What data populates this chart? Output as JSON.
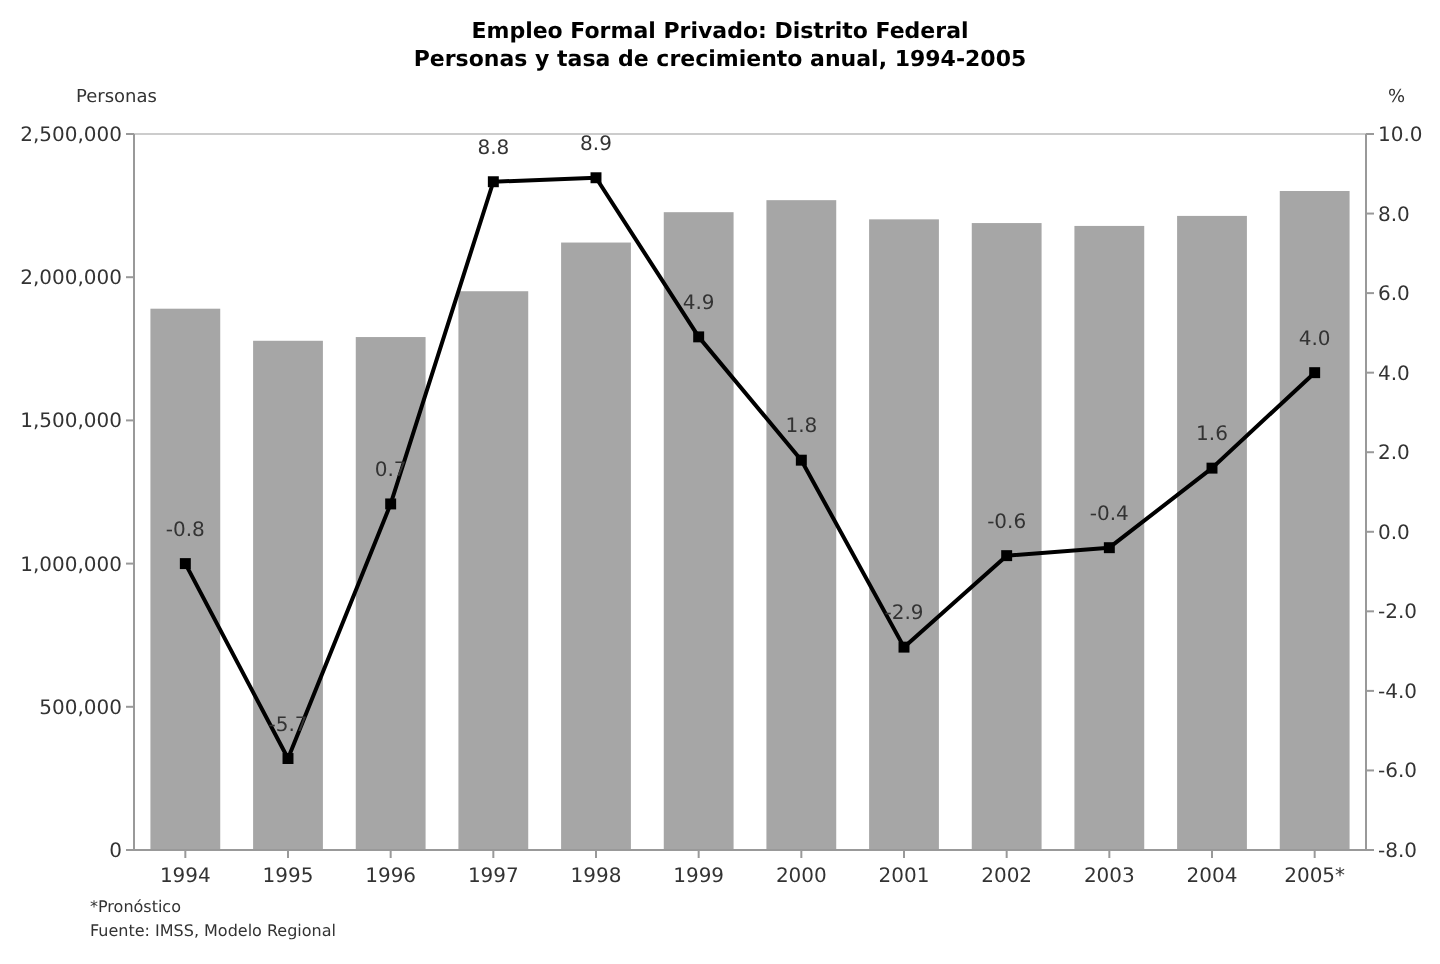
{
  "chart_data": {
    "type": "bar",
    "title": "Empleo Formal Privado: Distrito Federal",
    "subtitle": "Personas y tasa de crecimiento anual, 1994-2005",
    "ylabel": "Personas",
    "y2label": "%",
    "categories": [
      "1994",
      "1995",
      "1996",
      "1997",
      "1998",
      "1999",
      "2000",
      "2001",
      "2002",
      "2003",
      "2004",
      "2005*"
    ],
    "series": [
      {
        "color": "#a6a6a6",
        "values": [
          1890000,
          1778000,
          1791000,
          1951000,
          2121000,
          2227000,
          2269000,
          2202000,
          2189000,
          2179000,
          2214000,
          2301000
        ]
      },
      {
        "type": "line",
        "axis": "y2",
        "color": "#000000",
        "marker": "square",
        "values": [
          -0.8,
          -5.7,
          0.7,
          8.8,
          8.9,
          4.9,
          1.8,
          -2.9,
          -0.6,
          -0.4,
          1.6,
          4.0
        ],
        "value_labels": [
          "-0.8",
          "-5.7",
          "0.7",
          "8.8",
          "8.9",
          "4.9",
          "1.8",
          "-2.9",
          "-0.6",
          "-0.4",
          "1.6",
          "4.0"
        ]
      }
    ],
    "ylim": [
      0,
      2500000
    ],
    "yticks": [
      {
        "value": 0,
        "label": "0"
      },
      {
        "value": 500000,
        "label": "500,000"
      },
      {
        "value": 1000000,
        "label": "1,000,000"
      },
      {
        "value": 1500000,
        "label": "1,500,000"
      },
      {
        "value": 2000000,
        "label": "2,000,000"
      },
      {
        "value": 2500000,
        "label": "2,500,000"
      }
    ],
    "y2lim": [
      -8,
      10
    ],
    "y2ticks": [
      {
        "value": -8,
        "label": "-8.0"
      },
      {
        "value": -6,
        "label": "-6.0"
      },
      {
        "value": -4,
        "label": "-4.0"
      },
      {
        "value": -2,
        "label": "-2.0"
      },
      {
        "value": 0,
        "label": "0.0"
      },
      {
        "value": 2,
        "label": "2.0"
      },
      {
        "value": 4,
        "label": "4.0"
      },
      {
        "value": 6,
        "label": "6.0"
      },
      {
        "value": 8,
        "label": "8.0"
      },
      {
        "value": 10,
        "label": "10.0"
      }
    ],
    "grid": false,
    "annotations": [
      "*Pronóstico",
      "Fuente: IMSS, Modelo Regional"
    ]
  }
}
